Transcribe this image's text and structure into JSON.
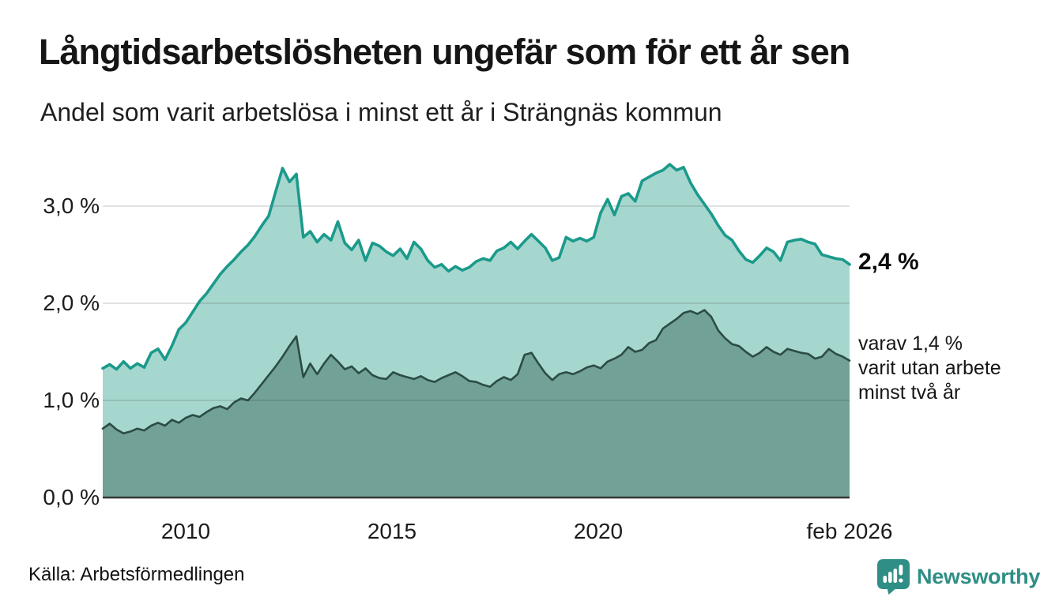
{
  "header": {
    "title": "Långtidsarbetslösheten ungefär som för ett år sen",
    "subtitle": "Andel som varit arbetslösa i minst ett år i Strängnäs kommun"
  },
  "chart_data": {
    "type": "area",
    "title": "Långtidsarbetslösheten ungefär som för ett år sen",
    "subtitle": "Andel som varit arbetslösa i minst ett år i Strängnäs kommun",
    "x_start": 2008.0,
    "x_end": 2026.083,
    "ylim": [
      0,
      3.6
    ],
    "grid": "horizontal",
    "y_ticks": [
      {
        "label": "0,0 %",
        "value": 0
      },
      {
        "label": "1,0 %",
        "value": 1
      },
      {
        "label": "2,0 %",
        "value": 2
      },
      {
        "label": "3,0 %",
        "value": 3
      }
    ],
    "x_ticks": [
      {
        "label": "2010",
        "year": 2010
      },
      {
        "label": "2015",
        "year": 2015
      },
      {
        "label": "2020",
        "year": 2020
      },
      {
        "label": "feb 2026",
        "year": 2026.083
      }
    ],
    "series": [
      {
        "name": "arbetslösa minst ett år",
        "color": "#1b9a8b",
        "fill": "#a6d7ce",
        "last_value": 2.4,
        "values": [
          1.33,
          1.37,
          1.32,
          1.4,
          1.33,
          1.38,
          1.34,
          1.49,
          1.53,
          1.42,
          1.56,
          1.73,
          1.8,
          1.91,
          2.02,
          2.1,
          2.2,
          2.3,
          2.38,
          2.45,
          2.53,
          2.6,
          2.69,
          2.8,
          2.9,
          3.15,
          3.39,
          3.25,
          3.33,
          2.68,
          2.74,
          2.63,
          2.71,
          2.65,
          2.84,
          2.62,
          2.55,
          2.65,
          2.44,
          2.62,
          2.59,
          2.53,
          2.49,
          2.56,
          2.46,
          2.63,
          2.56,
          2.44,
          2.37,
          2.4,
          2.33,
          2.38,
          2.34,
          2.37,
          2.43,
          2.46,
          2.44,
          2.54,
          2.57,
          2.63,
          2.56,
          2.64,
          2.71,
          2.64,
          2.57,
          2.44,
          2.47,
          2.68,
          2.64,
          2.67,
          2.64,
          2.68,
          2.93,
          3.07,
          2.91,
          3.1,
          3.13,
          3.05,
          3.26,
          3.3,
          3.34,
          3.37,
          3.43,
          3.37,
          3.4,
          3.24,
          3.12,
          3.02,
          2.92,
          2.8,
          2.7,
          2.65,
          2.54,
          2.45,
          2.42,
          2.49,
          2.57,
          2.53,
          2.44,
          2.63,
          2.65,
          2.66,
          2.63,
          2.61,
          2.5,
          2.48,
          2.46,
          2.45,
          2.4
        ]
      },
      {
        "name": "arbetslösa minst två år",
        "color": "#2b4c44",
        "fill": "#71a197",
        "last_value": 1.4,
        "values": [
          0.71,
          0.76,
          0.7,
          0.66,
          0.68,
          0.71,
          0.69,
          0.74,
          0.77,
          0.74,
          0.8,
          0.77,
          0.82,
          0.85,
          0.83,
          0.88,
          0.92,
          0.94,
          0.91,
          0.98,
          1.02,
          1.0,
          1.08,
          1.17,
          1.26,
          1.35,
          1.45,
          1.56,
          1.66,
          1.24,
          1.38,
          1.27,
          1.38,
          1.47,
          1.4,
          1.32,
          1.35,
          1.28,
          1.33,
          1.26,
          1.23,
          1.22,
          1.29,
          1.26,
          1.24,
          1.22,
          1.25,
          1.21,
          1.19,
          1.23,
          1.26,
          1.29,
          1.25,
          1.2,
          1.19,
          1.16,
          1.14,
          1.2,
          1.24,
          1.21,
          1.27,
          1.47,
          1.49,
          1.38,
          1.28,
          1.21,
          1.27,
          1.29,
          1.27,
          1.3,
          1.34,
          1.36,
          1.33,
          1.4,
          1.43,
          1.47,
          1.55,
          1.5,
          1.52,
          1.59,
          1.62,
          1.74,
          1.79,
          1.84,
          1.9,
          1.92,
          1.89,
          1.93,
          1.86,
          1.72,
          1.64,
          1.58,
          1.56,
          1.5,
          1.45,
          1.49,
          1.55,
          1.5,
          1.47,
          1.53,
          1.51,
          1.49,
          1.48,
          1.43,
          1.45,
          1.53,
          1.48,
          1.45,
          1.41
        ]
      }
    ],
    "annotations": {
      "latest_value": "2,4 %",
      "note_lines": [
        "varav 1,4 %",
        "varit utan arbete",
        "minst två år"
      ]
    },
    "colors": {
      "gridline": "rgba(30,30,30,0.13)",
      "baseline": "#363636",
      "brand_teal": "#2f8e85"
    }
  },
  "footer": {
    "source": "Källa: Arbetsförmedlingen",
    "brand": "Newsworthy"
  }
}
